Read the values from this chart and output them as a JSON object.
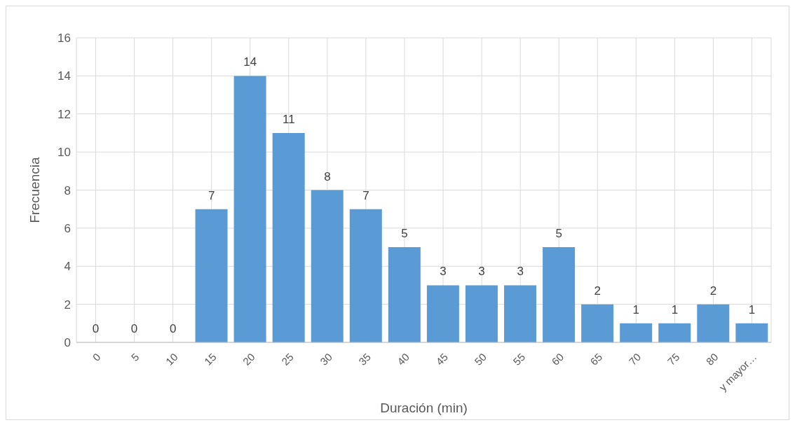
{
  "chart_data": {
    "type": "bar",
    "xlabel": "Duración (min)",
    "ylabel": "Frecuencia",
    "categories": [
      "0",
      "5",
      "10",
      "15",
      "20",
      "25",
      "30",
      "35",
      "40",
      "45",
      "50",
      "55",
      "60",
      "65",
      "70",
      "75",
      "80",
      "y mayor…"
    ],
    "values": [
      0,
      0,
      0,
      7,
      14,
      11,
      8,
      7,
      5,
      3,
      3,
      3,
      5,
      2,
      1,
      1,
      2,
      1
    ],
    "color": "#5b9bd5",
    "ylim": [
      0,
      16
    ],
    "yticks": [
      0,
      2,
      4,
      6,
      8,
      10,
      12,
      14,
      16
    ],
    "grid": true,
    "data_labels": true
  }
}
